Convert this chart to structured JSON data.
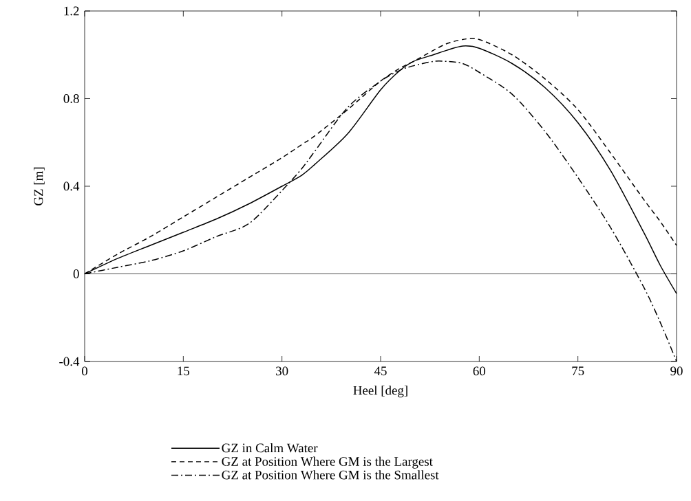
{
  "chart_data": {
    "type": "line",
    "xlabel": "Heel [deg]",
    "ylabel": "GZ [m]",
    "x": [
      0,
      5,
      10,
      15,
      20,
      25,
      30,
      33,
      35,
      40,
      45,
      48,
      50,
      53,
      55,
      57.5,
      60,
      65,
      70,
      75,
      80,
      85,
      87.5,
      90
    ],
    "xlim": [
      0,
      90
    ],
    "xticks": [
      0,
      15,
      30,
      45,
      60,
      75,
      90
    ],
    "ylim": [
      -0.4,
      1.2
    ],
    "yticks": [
      {
        "value": -0.4,
        "label": "-0.4"
      },
      0,
      0.4,
      0.8,
      1.2
    ],
    "legend": "bottom",
    "ref_lines": [
      {
        "axis": "y",
        "value": 0,
        "color": "#000000"
      }
    ],
    "series": [
      {
        "name": "GZ in Calm Water",
        "color": "#000000",
        "line_style": "solid",
        "values": [
          0,
          0.07,
          0.13,
          0.19,
          0.25,
          0.32,
          0.4,
          0.45,
          0.5,
          0.64,
          0.84,
          0.93,
          0.97,
          1.0,
          1.02,
          1.04,
          1.03,
          0.96,
          0.85,
          0.69,
          0.47,
          0.19,
          0.04,
          -0.09
        ]
      },
      {
        "name": "GZ at Position Where GM is the Largest",
        "color": "#000000",
        "line_style": "dashed",
        "values": [
          0,
          0.09,
          0.17,
          0.26,
          0.35,
          0.44,
          0.53,
          0.59,
          0.63,
          0.75,
          0.88,
          0.94,
          0.97,
          1.02,
          1.05,
          1.07,
          1.07,
          1.0,
          0.89,
          0.75,
          0.55,
          0.34,
          0.24,
          0.13
        ]
      },
      {
        "name": "GZ at Position Where GM is the Smallest",
        "color": "#000000",
        "line_style": "dashdot",
        "values": [
          0,
          0.03,
          0.06,
          0.105,
          0.17,
          0.23,
          0.38,
          0.48,
          0.56,
          0.76,
          0.88,
          0.93,
          0.95,
          0.97,
          0.97,
          0.96,
          0.92,
          0.82,
          0.65,
          0.44,
          0.21,
          -0.06,
          -0.22,
          -0.4
        ]
      }
    ]
  }
}
